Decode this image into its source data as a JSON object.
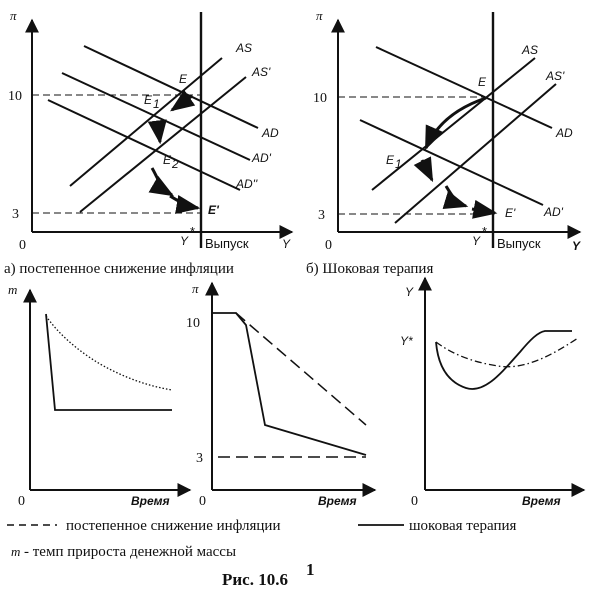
{
  "top_left": {
    "y_axis": "π",
    "x_axis": "Y",
    "origin": "0",
    "output_label": "Выпуск",
    "level_high": "10",
    "level_low": "3",
    "curves": [
      "AS",
      "AS'",
      "AD",
      "AD'",
      "AD''"
    ],
    "points": [
      "E",
      "E",
      "1",
      "E",
      "2",
      "E'"
    ],
    "y_star": "Y",
    "caption": "а) постепенное снижение инфляции"
  },
  "top_right": {
    "y_axis": "π",
    "x_axis": "Y",
    "origin": "0",
    "output_label": "Выпуск",
    "level_high": "10",
    "level_low": "3",
    "curves": [
      "AS",
      "AS'",
      "AD",
      "AD'"
    ],
    "points": [
      "E",
      "E",
      "1",
      "E'"
    ],
    "y_star": "Y",
    "caption": "б) Шоковая терапия"
  },
  "bottom_left": {
    "y_axis": "m",
    "x_axis": "Время",
    "origin": "0"
  },
  "bottom_mid": {
    "y_axis": "π",
    "x_axis": "Время",
    "origin": "0",
    "level_high": "10",
    "level_low": "3"
  },
  "bottom_right": {
    "y_axis": "Y",
    "x_axis": "Время",
    "origin": "0",
    "y_star": "Y*"
  },
  "legend": {
    "dashed_label": "постепенное снижение инфляции",
    "solid_label": "шоковая терапия",
    "m_symbol": "m",
    "m_label": " - темп прироста денежной массы"
  },
  "figure_caption": "Рис. 10.6",
  "footnote_mark": "1"
}
